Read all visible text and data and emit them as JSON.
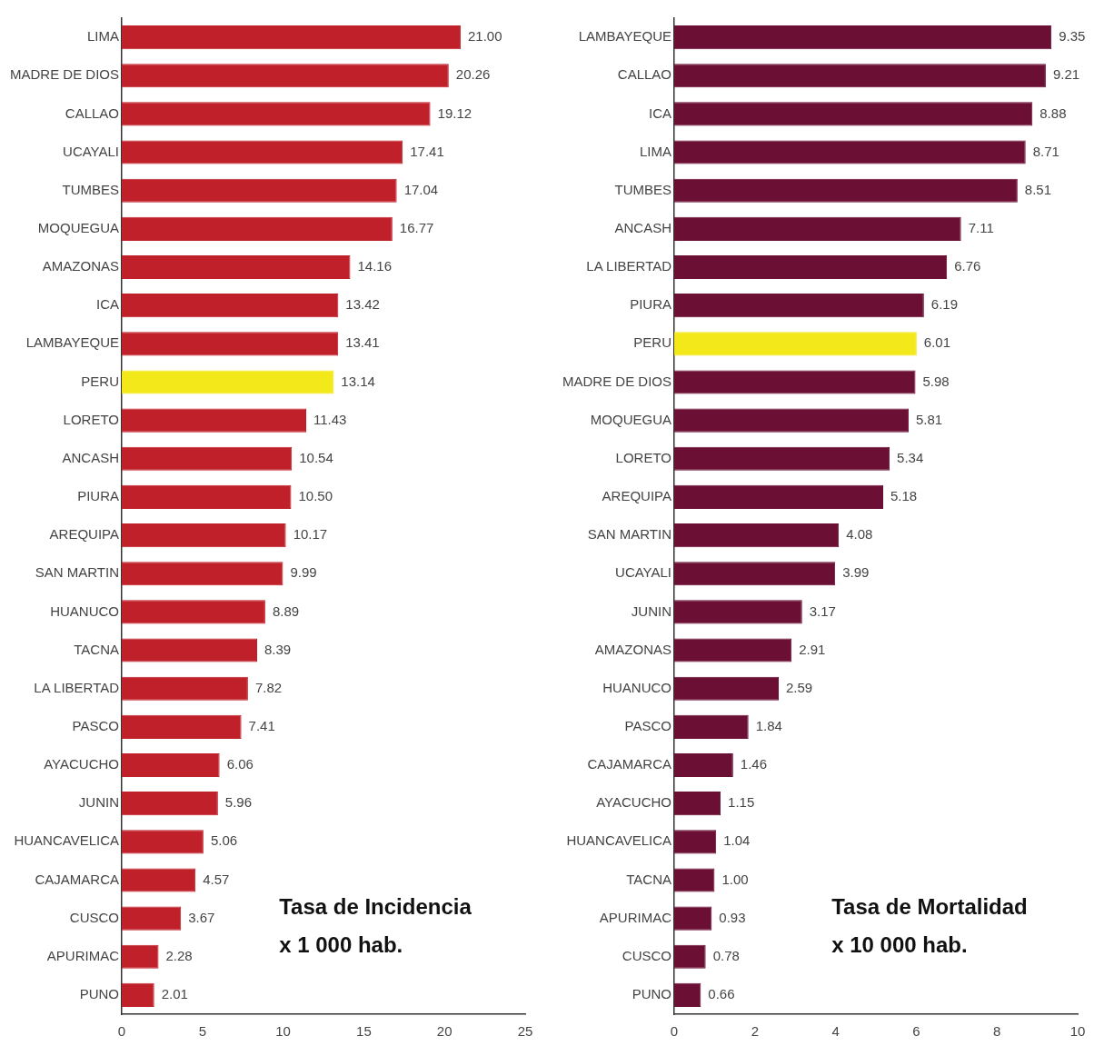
{
  "chart_data": [
    {
      "type": "bar",
      "orientation": "horizontal",
      "annotations": [
        "Tasa de Incidencia",
        "x 1 000 hab."
      ],
      "categories": [
        "LIMA",
        "MADRE DE DIOS",
        "CALLAO",
        "UCAYALI",
        "TUMBES",
        "MOQUEGUA",
        "AMAZONAS",
        "ICA",
        "LAMBAYEQUE",
        "PERU",
        "LORETO",
        "ANCASH",
        "PIURA",
        "AREQUIPA",
        "SAN MARTIN",
        "HUANUCO",
        "TACNA",
        "LA LIBERTAD",
        "PASCO",
        "AYACUCHO",
        "JUNIN",
        "HUANCAVELICA",
        "CAJAMARCA",
        "CUSCO",
        "APURIMAC",
        "PUNO"
      ],
      "values": [
        21.0,
        20.26,
        19.12,
        17.41,
        17.04,
        16.77,
        14.16,
        13.42,
        13.41,
        13.14,
        11.43,
        10.54,
        10.5,
        10.17,
        9.99,
        8.89,
        8.39,
        7.82,
        7.41,
        6.06,
        5.96,
        5.06,
        4.57,
        3.67,
        2.28,
        2.01
      ],
      "value_labels": [
        "21.00",
        "20.26",
        "19.12",
        "17.41",
        "17.04",
        "16.77",
        "14.16",
        "13.42",
        "13.41",
        "13.14",
        "11.43",
        "10.54",
        "10.50",
        "10.17",
        "9.99",
        "8.89",
        "8.39",
        "7.82",
        "7.41",
        "6.06",
        "5.96",
        "5.06",
        "4.57",
        "3.67",
        "2.28",
        "2.01"
      ],
      "colors": [
        "#c0202a",
        "#c0202a",
        "#c0202a",
        "#c0202a",
        "#c0202a",
        "#c0202a",
        "#c0202a",
        "#c0202a",
        "#c0202a",
        "#f2e81a",
        "#c0202a",
        "#c0202a",
        "#c0202a",
        "#c0202a",
        "#c0202a",
        "#c0202a",
        "#c0202a",
        "#c0202a",
        "#c0202a",
        "#c0202a",
        "#c0202a",
        "#c0202a",
        "#c0202a",
        "#c0202a",
        "#c0202a",
        "#c0202a"
      ],
      "xlim": [
        0,
        25
      ],
      "xticks": [
        0,
        5,
        10,
        15,
        20,
        25
      ],
      "grid": false,
      "legend": false
    },
    {
      "type": "bar",
      "orientation": "horizontal",
      "annotations": [
        "Tasa de Mortalidad",
        "x 10 000 hab."
      ],
      "categories": [
        "LAMBAYEQUE",
        "CALLAO",
        "ICA",
        "LIMA",
        "TUMBES",
        "ANCASH",
        "LA LIBERTAD",
        "PIURA",
        "PERU",
        "MADRE DE DIOS",
        "MOQUEGUA",
        "LORETO",
        "AREQUIPA",
        "SAN MARTIN",
        "UCAYALI",
        "JUNIN",
        "AMAZONAS",
        "HUANUCO",
        "PASCO",
        "CAJAMARCA",
        "AYACUCHO",
        "HUANCAVELICA",
        "TACNA",
        "APURIMAC",
        "CUSCO",
        "PUNO"
      ],
      "values": [
        9.35,
        9.21,
        8.88,
        8.71,
        8.51,
        7.11,
        6.76,
        6.19,
        6.01,
        5.98,
        5.81,
        5.34,
        5.18,
        4.08,
        3.99,
        3.17,
        2.91,
        2.59,
        1.84,
        1.46,
        1.15,
        1.04,
        1.0,
        0.93,
        0.78,
        0.66
      ],
      "value_labels": [
        "9.35",
        "9.21",
        "8.88",
        "8.71",
        "8.51",
        "7.11",
        "6.76",
        "6.19",
        "6.01",
        "5.98",
        "5.81",
        "5.34",
        "5.18",
        "4.08",
        "3.99",
        "3.17",
        "2.91",
        "2.59",
        "1.84",
        "1.46",
        "1.15",
        "1.04",
        "1.00",
        "0.93",
        "0.78",
        "0.66"
      ],
      "colors": [
        "#6b0f35",
        "#6b0f35",
        "#6b0f35",
        "#6b0f35",
        "#6b0f35",
        "#6b0f35",
        "#6b0f35",
        "#6b0f35",
        "#f2e81a",
        "#6b0f35",
        "#6b0f35",
        "#6b0f35",
        "#6b0f35",
        "#6b0f35",
        "#6b0f35",
        "#6b0f35",
        "#6b0f35",
        "#6b0f35",
        "#6b0f35",
        "#6b0f35",
        "#6b0f35",
        "#6b0f35",
        "#6b0f35",
        "#6b0f35",
        "#6b0f35",
        "#6b0f35"
      ],
      "xlim": [
        0,
        10
      ],
      "xticks": [
        0,
        2,
        4,
        6,
        8,
        10
      ],
      "grid": false,
      "legend": false
    }
  ]
}
